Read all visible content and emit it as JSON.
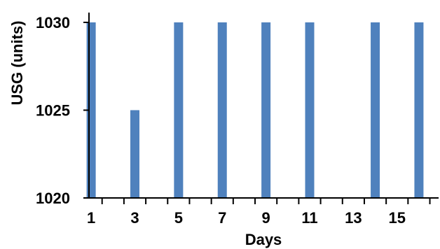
{
  "chart_data": {
    "type": "bar",
    "xlabel": "Days",
    "ylabel": "USG (units)",
    "x_tick_labels": [
      "1",
      "3",
      "5",
      "7",
      "9",
      "11",
      "13",
      "15"
    ],
    "y_tick_labels": [
      "1020",
      "1025",
      "1030"
    ],
    "ylim": [
      1020,
      1030
    ],
    "series": [
      {
        "x": [
          1,
          3,
          5,
          7,
          9,
          11,
          14,
          16
        ],
        "values": [
          1030,
          1025,
          1030,
          1030,
          1030,
          1030,
          1030,
          1030
        ],
        "color": "#4f81bd"
      }
    ],
    "grid": false,
    "legend": "none"
  }
}
